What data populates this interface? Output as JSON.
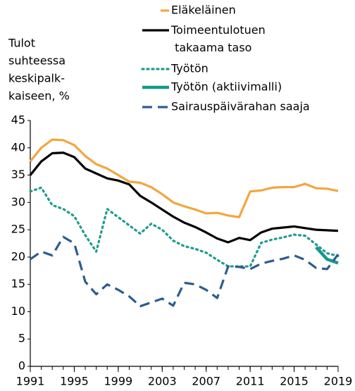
{
  "chart_data": {
    "type": "line",
    "y_label": [
      "Tulot",
      "suhteessa",
      "keskipalk-",
      "kaiseen, %"
    ],
    "x": [
      1991,
      1992,
      1993,
      1994,
      1995,
      1996,
      1997,
      1998,
      1999,
      2000,
      2001,
      2002,
      2003,
      2004,
      2005,
      2006,
      2007,
      2008,
      2009,
      2010,
      2011,
      2012,
      2013,
      2014,
      2015,
      2016,
      2017,
      2018,
      2019
    ],
    "xlim": [
      1991,
      2019
    ],
    "xticks": [
      1991,
      1995,
      1999,
      2003,
      2007,
      2011,
      2015,
      2019
    ],
    "ylim": [
      0,
      45
    ],
    "yticks": [
      0,
      5,
      10,
      15,
      20,
      25,
      30,
      35,
      40,
      45
    ],
    "series": [
      {
        "name": "Eläkeläinen",
        "color": "#f4a640",
        "style": "solid",
        "values": [
          37.5,
          40,
          41.5,
          41.4,
          40.5,
          38.5,
          37,
          36.2,
          35,
          33.8,
          33.6,
          32.8,
          31.5,
          30,
          29.3,
          28.7,
          28,
          28.1,
          27.6,
          27.3,
          32,
          32.2,
          32.7,
          32.8,
          32.8,
          33.4,
          32.6,
          32.5,
          32.1
        ]
      },
      {
        "name": "Toimeentulotuen takaama taso",
        "color": "#000000",
        "style": "solid",
        "values": [
          35,
          37.5,
          39,
          39.1,
          38.3,
          36.2,
          35.3,
          34.4,
          34,
          33.3,
          31.2,
          30,
          28.7,
          27.4,
          26.3,
          25.5,
          24.5,
          23.4,
          22.7,
          23.5,
          23.1,
          24.5,
          25.2,
          25.4,
          25.6,
          25.3,
          25,
          24.9,
          24.8
        ]
      },
      {
        "name": "Työtön",
        "color": "#1f9c8b",
        "style": "dotted",
        "values": [
          32,
          32.7,
          29.5,
          28.8,
          27.5,
          24,
          21,
          28.8,
          27.3,
          25.8,
          24.3,
          26.1,
          25,
          23,
          22,
          21.5,
          20.8,
          19.5,
          18.3,
          18.3,
          18.3,
          22.6,
          23.2,
          23.6,
          24.1,
          23.9,
          22.3,
          20.7,
          20.2
        ]
      },
      {
        "name": "Työtön (aktiivimalli)",
        "color": "#17998a",
        "style": "solid",
        "values": [
          null,
          null,
          null,
          null,
          null,
          null,
          null,
          null,
          null,
          null,
          null,
          null,
          null,
          null,
          null,
          null,
          null,
          null,
          null,
          null,
          null,
          null,
          null,
          null,
          null,
          null,
          21.8,
          19.6,
          18.9
        ]
      },
      {
        "name": "Sairauspäivärahan saaja",
        "color": "#2c5d8f",
        "style": "dashed",
        "values": [
          19.6,
          21,
          20.3,
          23.7,
          22.5,
          15.5,
          13.2,
          15,
          14,
          12.8,
          11,
          11.7,
          12.4,
          11.1,
          15.3,
          15,
          14,
          12.5,
          18.3,
          18.2,
          17.8,
          18.8,
          19.3,
          19.7,
          20.3,
          19.5,
          18,
          17.8,
          20.5
        ]
      }
    ]
  }
}
